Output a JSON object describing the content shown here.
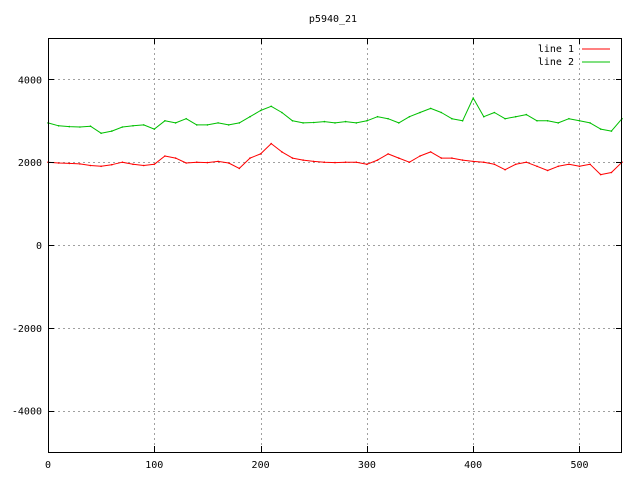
{
  "chart_data": {
    "type": "line",
    "title": "p5940_21",
    "xlabel": "",
    "ylabel": "",
    "xlim": [
      0,
      540
    ],
    "ylim": [
      -5000,
      5000
    ],
    "x_ticks": [
      0,
      100,
      200,
      300,
      400,
      500
    ],
    "y_ticks": [
      -4000,
      -2000,
      0,
      2000,
      4000
    ],
    "grid": true,
    "legend_position": "top-right",
    "x": [
      0,
      10,
      20,
      30,
      40,
      50,
      60,
      70,
      80,
      90,
      100,
      110,
      120,
      130,
      140,
      150,
      160,
      170,
      180,
      190,
      200,
      210,
      220,
      230,
      240,
      250,
      260,
      270,
      280,
      290,
      300,
      310,
      320,
      330,
      340,
      350,
      360,
      370,
      380,
      390,
      400,
      410,
      420,
      430,
      440,
      450,
      460,
      470,
      480,
      490,
      500,
      510,
      520,
      530,
      540
    ],
    "series": [
      {
        "name": "line 1",
        "color": "#ff0000",
        "values": [
          2000,
          1980,
          1970,
          1960,
          1920,
          1900,
          1940,
          2000,
          1950,
          1920,
          1950,
          2150,
          2100,
          1980,
          2000,
          1990,
          2020,
          1980,
          1850,
          2100,
          2200,
          2450,
          2250,
          2100,
          2050,
          2020,
          2000,
          1990,
          2000,
          2000,
          1950,
          2050,
          2200,
          2100,
          2000,
          2150,
          2250,
          2100,
          2100,
          2050,
          2020,
          2000,
          1950,
          1820,
          1950,
          2000,
          1900,
          1800,
          1900,
          1950,
          1900,
          1950,
          1700,
          1750,
          2000
        ]
      },
      {
        "name": "line 2",
        "color": "#00c000",
        "values": [
          2950,
          2880,
          2860,
          2850,
          2870,
          2700,
          2750,
          2850,
          2880,
          2900,
          2800,
          3000,
          2950,
          3050,
          2900,
          2900,
          2950,
          2900,
          2950,
          3100,
          3250,
          3350,
          3200,
          3000,
          2950,
          2960,
          2980,
          2950,
          2980,
          2950,
          3000,
          3100,
          3050,
          2950,
          3100,
          3200,
          3300,
          3200,
          3050,
          3000,
          3550,
          3100,
          3200,
          3050,
          3100,
          3150,
          3000,
          3000,
          2950,
          3050,
          3000,
          2950,
          2800,
          2750,
          3050
        ]
      }
    ]
  }
}
